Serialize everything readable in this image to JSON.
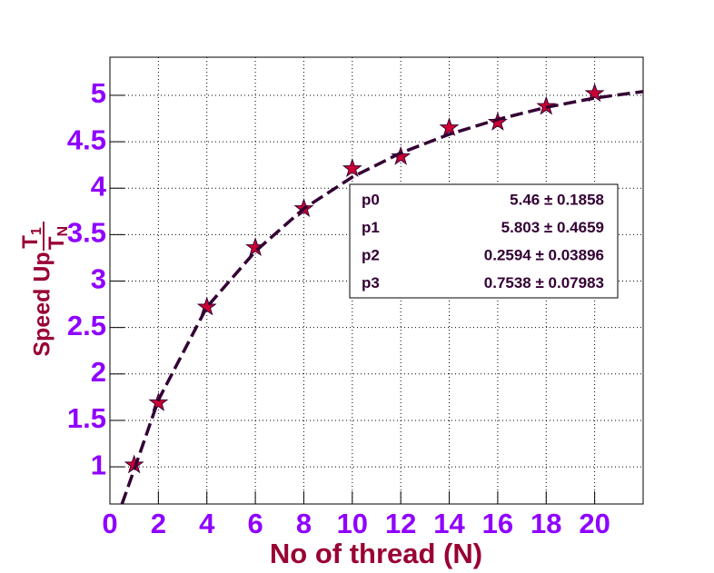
{
  "chart_data": {
    "type": "scatter",
    "x_label": "No of thread (N)",
    "y_label": "Speed Up",
    "y_label_fraction": {
      "numerator": "T",
      "numerator_sub": "1",
      "denominator": "T",
      "denominator_sub": "N"
    },
    "x": [
      1,
      2,
      4,
      6,
      8,
      10,
      12,
      14,
      16,
      18,
      20
    ],
    "values": [
      1.02,
      1.69,
      2.72,
      3.36,
      3.78,
      4.21,
      4.34,
      4.65,
      4.71,
      4.88,
      5.02
    ],
    "marker_color": "#cc0033",
    "fit": {
      "color": "#330033",
      "x": [
        0.5,
        1,
        2,
        4,
        6,
        8,
        10,
        12,
        14,
        16,
        18,
        20,
        22
      ],
      "values": [
        0.6,
        0.97,
        1.72,
        2.72,
        3.32,
        3.78,
        4.12,
        4.38,
        4.58,
        4.74,
        4.87,
        4.97,
        5.04
      ]
    },
    "fit_params": [
      {
        "name": "p0",
        "value": "5.46 ± 0.1858"
      },
      {
        "name": "p1",
        "value": "5.803 ± 0.4659"
      },
      {
        "name": "p2",
        "value": "0.2594 ± 0.03896"
      },
      {
        "name": "p3",
        "value": "0.7538 ± 0.07983"
      }
    ],
    "xlim": [
      0,
      22
    ],
    "ylim": [
      0.6,
      5.41
    ],
    "xticks": [
      0,
      2,
      4,
      6,
      8,
      10,
      12,
      14,
      16,
      18,
      20
    ],
    "yticks": [
      1,
      1.5,
      2,
      2.5,
      3,
      3.5,
      4,
      4.5,
      5
    ],
    "grid": true
  }
}
